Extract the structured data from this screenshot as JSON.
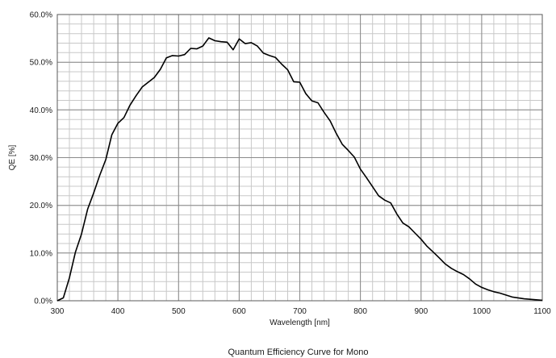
{
  "chart_data": {
    "type": "line",
    "title": "Quantum Efficiency Curve for Mono",
    "xlabel": "Wavelength [nm]",
    "ylabel": "QE [%]",
    "xlim": [
      300,
      1100
    ],
    "ylim": [
      0,
      60
    ],
    "x_ticks": [
      "300",
      "400",
      "500",
      "600",
      "700",
      "800",
      "900",
      "1000",
      "1100"
    ],
    "y_ticks": [
      "0.0%",
      "10.0%",
      "20.0%",
      "30.0%",
      "40.0%",
      "50.0%",
      "60.0%"
    ],
    "grid": true,
    "x_minor_step": 20,
    "y_minor_step": 2,
    "line_color": "#000000",
    "series": [
      {
        "x": [
          300,
          310,
          320,
          330,
          340,
          350,
          360,
          370,
          380,
          390,
          400,
          410,
          420,
          430,
          440,
          450,
          460,
          470,
          480,
          490,
          500,
          510,
          520,
          530,
          540,
          550,
          560,
          570,
          580,
          590,
          600,
          610,
          620,
          630,
          640,
          650,
          660,
          670,
          680,
          690,
          700,
          710,
          720,
          730,
          740,
          750,
          760,
          770,
          780,
          790,
          800,
          810,
          820,
          830,
          840,
          850,
          860,
          870,
          880,
          890,
          900,
          910,
          920,
          930,
          940,
          950,
          960,
          970,
          980,
          990,
          1000,
          1010,
          1020,
          1030,
          1040,
          1050,
          1060,
          1070,
          1080,
          1090,
          1100
        ],
        "y": [
          0.0,
          0.6,
          4.8,
          10.2,
          14.0,
          19.2,
          22.6,
          26.3,
          29.6,
          34.8,
          37.2,
          38.4,
          41.0,
          43.0,
          44.8,
          45.8,
          46.8,
          48.5,
          50.9,
          51.4,
          51.3,
          51.6,
          52.9,
          52.8,
          53.4,
          55.1,
          54.5,
          54.3,
          54.2,
          52.6,
          54.9,
          53.9,
          54.1,
          53.4,
          51.9,
          51.4,
          51.0,
          49.6,
          48.4,
          45.9,
          45.8,
          43.4,
          41.9,
          41.5,
          39.5,
          37.7,
          35.1,
          32.8,
          31.5,
          30.1,
          27.6,
          25.8,
          23.9,
          22.0,
          21.1,
          20.5,
          18.2,
          16.3,
          15.5,
          14.2,
          12.9,
          11.4,
          10.2,
          9.0,
          7.7,
          6.8,
          6.1,
          5.5,
          4.6,
          3.5,
          2.8,
          2.3,
          1.9,
          1.6,
          1.2,
          0.8,
          0.6,
          0.4,
          0.3,
          0.2,
          0.1
        ]
      }
    ]
  }
}
